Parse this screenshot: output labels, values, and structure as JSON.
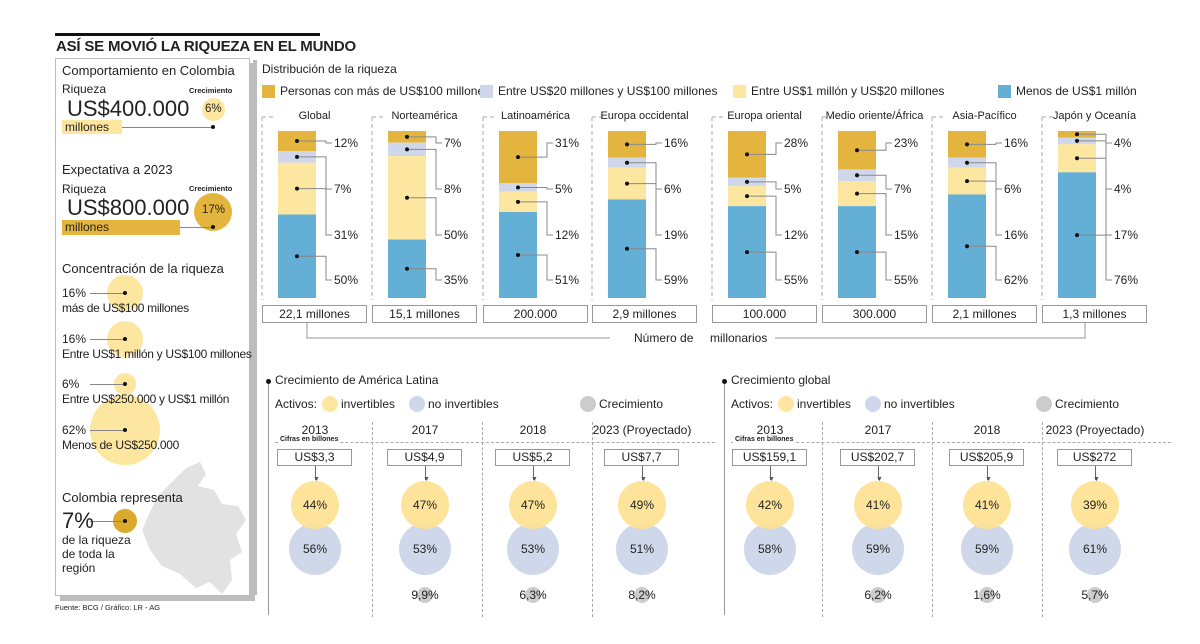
{
  "title": "ASÍ SE MOVIÓ LA RIQUEZA EN EL MUNDO",
  "colors": {
    "top": "#e3b53f",
    "second": "#cfd8ea",
    "third": "#fde6a0",
    "bottom": "#63afd6",
    "growth": "#cccccc",
    "colombia": "#d9aa2e"
  },
  "left_panel": {
    "colombia": {
      "heading": "Comportamiento en Colombia",
      "wealth_label": "Riqueza",
      "wealth_value": "US$400.000",
      "wealth_unit": "millones",
      "growth_label": "Crecimiento",
      "growth_value": "6%"
    },
    "expectation": {
      "heading": "Expectativa a 2023",
      "wealth_label": "Riqueza",
      "wealth_value": "US$800.000",
      "wealth_unit": "millones",
      "growth_label": "Crecimiento",
      "growth_value": "17%"
    },
    "concentration": {
      "heading": "Concentración de la riqueza",
      "items": [
        {
          "value": "16%",
          "percent": 16,
          "label": "más de US$100 millones"
        },
        {
          "value": "16%",
          "percent": 16,
          "label": "Entre US$1 millón y US$100 millones"
        },
        {
          "value": "6%",
          "percent": 6,
          "label": "Entre US$250.000 y US$1 millón"
        },
        {
          "value": "62%",
          "percent": 62,
          "label": "Menos de US$250.000"
        }
      ]
    },
    "region_share": {
      "heading": "Colombia representa",
      "value": "7%",
      "line1": "de la riqueza",
      "line2": "de toda la",
      "line3": "región"
    }
  },
  "source": "Fuente: BCG / Gráfico: LR - AG",
  "chart_data": [
    {
      "type": "bar",
      "stacked": true,
      "title": "Distribución de la riqueza",
      "categories": [
        "Global",
        "Norteamérica",
        "Latinoamérica",
        "Europa occidental",
        "Europa oriental",
        "Medio oriente/África",
        "Asia-Pacífico",
        "Japón y Oceanía"
      ],
      "series": [
        {
          "name": "Personas con más de US$100 millones",
          "values": [
            12,
            7,
            31,
            16,
            28,
            23,
            16,
            4
          ]
        },
        {
          "name": "Entre US$20 millones y US$100 millones",
          "values": [
            7,
            8,
            5,
            6,
            5,
            7,
            6,
            4
          ]
        },
        {
          "name": "Entre US$1 millón y US$20 millones",
          "values": [
            31,
            50,
            12,
            19,
            12,
            15,
            16,
            17
          ]
        },
        {
          "name": "Menos de US$1 millón",
          "values": [
            50,
            35,
            51,
            59,
            55,
            55,
            62,
            76
          ]
        }
      ],
      "value_labels": [
        [
          "12%",
          "7%",
          "31%",
          "50%"
        ],
        [
          "7%",
          "8%",
          "50%",
          "35%"
        ],
        [
          "31%",
          "5%",
          "12%",
          "51%"
        ],
        [
          "16%",
          "6%",
          "19%",
          "59%"
        ],
        [
          "28%",
          "5%",
          "12%",
          "55%"
        ],
        [
          "23%",
          "7%",
          "15%",
          "55%"
        ],
        [
          "16%",
          "6%",
          "16%",
          "62%"
        ],
        [
          "4%",
          "4%",
          "17%",
          "76%"
        ]
      ],
      "millionaires": [
        "22,1 millones",
        "15,1 millones",
        "200.000",
        "2,9 millones",
        "100.000",
        "300.000",
        "2,1 millones",
        "1,3 millones"
      ],
      "millionaires_label_1": "Número de",
      "millionaires_label_2": "millonarios",
      "legend": "top"
    },
    {
      "type": "bubble",
      "title": "Crecimiento de América Latina",
      "legend_prefix": "Activos:",
      "legend": [
        "invertibles",
        "no invertibles",
        "Crecimiento"
      ],
      "units_note": "Cifras en billones",
      "years": [
        "2013",
        "2017",
        "2018",
        "2023 (Proyectado)"
      ],
      "totals": [
        "US$3,3",
        "US$4,9",
        "US$5,2",
        "US$7,7"
      ],
      "investable": [
        "44%",
        "47%",
        "47%",
        "49%"
      ],
      "non_investable": [
        "56%",
        "53%",
        "53%",
        "51%"
      ],
      "growth": [
        "",
        "9,9%",
        "6,3%",
        "8,2%"
      ]
    },
    {
      "type": "bubble",
      "title": "Crecimiento global",
      "legend_prefix": "Activos:",
      "legend": [
        "invertibles",
        "no invertibles",
        "Crecimiento"
      ],
      "units_note": "Cifras en billones",
      "years": [
        "2013",
        "2017",
        "2018",
        "2023 (Proyectado)"
      ],
      "totals": [
        "US$159,1",
        "US$202,7",
        "US$205,9",
        "US$272"
      ],
      "investable": [
        "42%",
        "41%",
        "41%",
        "39%"
      ],
      "non_investable": [
        "58%",
        "59%",
        "59%",
        "61%"
      ],
      "growth": [
        "",
        "6,2%",
        "1,6%",
        "5,7%"
      ]
    }
  ]
}
